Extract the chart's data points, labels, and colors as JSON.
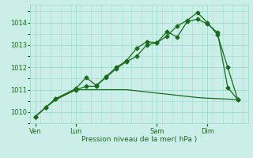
{
  "bg_color": "#cceee8",
  "grid_color": "#99ddcc",
  "line_color": "#1a6b1a",
  "xlabel": "Pression niveau de la mer( hPa )",
  "ylim": [
    1009.5,
    1014.8
  ],
  "yticks": [
    1010,
    1011,
    1012,
    1013,
    1014
  ],
  "xtick_labels": [
    "Ven",
    "Lun",
    "Sam",
    "Dim"
  ],
  "xtick_positions": [
    0,
    8,
    24,
    34
  ],
  "vline_positions": [
    0,
    8,
    24,
    34
  ],
  "xlim": [
    -1,
    42
  ],
  "line1_x": [
    0,
    2,
    4,
    8,
    10,
    11,
    12,
    14,
    16,
    18,
    20,
    22,
    24,
    26,
    28,
    30,
    32,
    34,
    36,
    38,
    40
  ],
  "line1_y": [
    1009.8,
    1010.2,
    1010.55,
    1011.0,
    1011.0,
    1011.0,
    1011.0,
    1011.0,
    1011.0,
    1011.0,
    1010.95,
    1010.9,
    1010.85,
    1010.8,
    1010.75,
    1010.7,
    1010.65,
    1010.62,
    1010.6,
    1010.58,
    1010.55
  ],
  "line2_x": [
    0,
    2,
    4,
    8,
    10,
    12,
    14,
    16,
    18,
    20,
    22,
    24,
    26,
    28,
    30,
    32,
    34,
    36,
    38,
    40
  ],
  "line2_y": [
    1009.8,
    1010.2,
    1010.6,
    1011.05,
    1011.55,
    1011.2,
    1011.55,
    1011.95,
    1012.25,
    1012.5,
    1013.0,
    1013.1,
    1013.4,
    1013.85,
    1014.1,
    1014.45,
    1014.0,
    1013.45,
    1012.0,
    1010.55
  ],
  "line3_x": [
    0,
    2,
    4,
    8,
    10,
    12,
    14,
    16,
    18,
    20,
    22,
    24,
    26,
    28,
    30,
    32,
    34,
    36,
    38,
    40
  ],
  "line3_y": [
    1009.8,
    1010.2,
    1010.6,
    1011.0,
    1011.15,
    1011.15,
    1011.6,
    1012.0,
    1012.3,
    1012.85,
    1013.15,
    1013.1,
    1013.6,
    1013.35,
    1014.05,
    1014.15,
    1013.95,
    1013.55,
    1011.1,
    1010.55
  ],
  "marker": "D",
  "markersize": 2.5,
  "linewidth": 0.9
}
